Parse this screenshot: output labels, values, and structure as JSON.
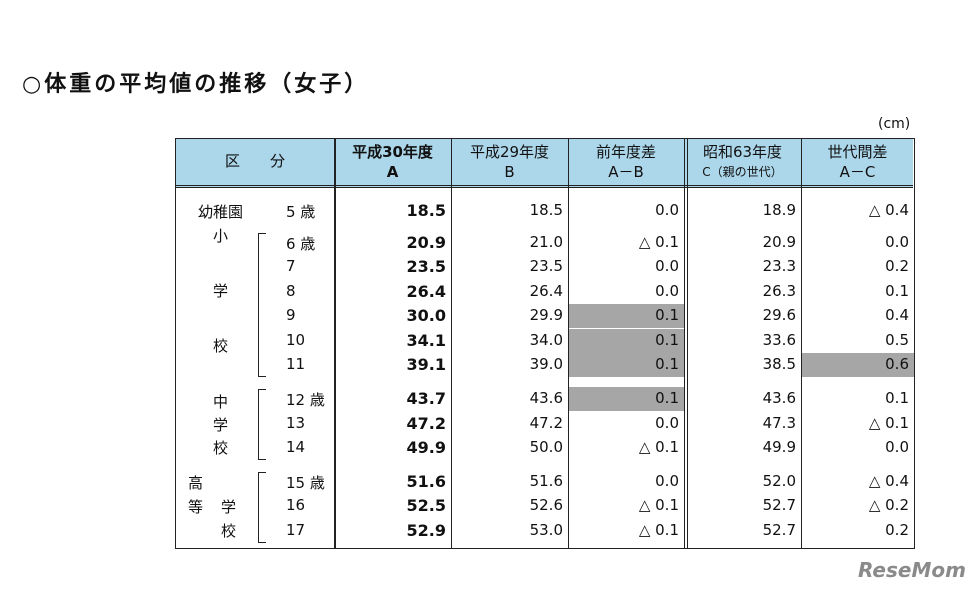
{
  "title": "○体重の平均値の推移（女子）",
  "unit": "(cm)",
  "table": {
    "header": [
      {
        "top": "区　　分"
      },
      {
        "top": "平成30年度",
        "bottom": "A"
      },
      {
        "top": "平成29年度",
        "bottom": "B"
      },
      {
        "top": "前年度差",
        "bottom": "A－B"
      },
      {
        "top": "昭和63年度",
        "bottom": "C（親の世代）"
      },
      {
        "top": "世代間差",
        "bottom": "A－C"
      }
    ],
    "groups": [
      {
        "chars": [
          "幼稚園"
        ],
        "rows": [
          0,
          0
        ]
      },
      {
        "chars": [
          "小",
          "学",
          "校"
        ],
        "rows": [
          1,
          6
        ]
      },
      {
        "chars": [
          "中",
          "学",
          "校"
        ],
        "rows": [
          7,
          9
        ]
      },
      {
        "chars": [
          "高",
          "等",
          "学",
          "校"
        ],
        "rows": [
          10,
          12
        ]
      }
    ],
    "rows": [
      {
        "age": "5 歳",
        "values": [
          "18.5",
          "18.5",
          "0.0",
          "18.9",
          "△ 0.4"
        ],
        "highlight": []
      },
      {
        "age": "6 歳",
        "values": [
          "20.9",
          "21.0",
          "△ 0.1",
          "20.9",
          "0.0"
        ],
        "highlight": []
      },
      {
        "age": "7",
        "values": [
          "23.5",
          "23.5",
          "0.0",
          "23.3",
          "0.2"
        ],
        "highlight": []
      },
      {
        "age": "8",
        "values": [
          "26.4",
          "26.4",
          "0.0",
          "26.3",
          "0.1"
        ],
        "highlight": []
      },
      {
        "age": "9",
        "values": [
          "30.0",
          "29.9",
          "0.1",
          "29.6",
          "0.4"
        ],
        "highlight": [
          2
        ]
      },
      {
        "age": "10",
        "values": [
          "34.1",
          "34.0",
          "0.1",
          "33.6",
          "0.5"
        ],
        "highlight": [
          2
        ]
      },
      {
        "age": "11",
        "values": [
          "39.1",
          "39.0",
          "0.1",
          "38.5",
          "0.6"
        ],
        "highlight": [
          2,
          4
        ]
      },
      {
        "age": "12 歳",
        "values": [
          "43.7",
          "43.6",
          "0.1",
          "43.6",
          "0.1"
        ],
        "highlight": [
          2
        ]
      },
      {
        "age": "13",
        "values": [
          "47.2",
          "47.2",
          "0.0",
          "47.3",
          "△ 0.1"
        ],
        "highlight": []
      },
      {
        "age": "14",
        "values": [
          "49.9",
          "50.0",
          "△ 0.1",
          "49.9",
          "0.0"
        ],
        "highlight": []
      },
      {
        "age": "15 歳",
        "values": [
          "51.6",
          "51.6",
          "0.0",
          "52.0",
          "△ 0.4"
        ],
        "highlight": []
      },
      {
        "age": "16",
        "values": [
          "52.5",
          "52.6",
          "△ 0.1",
          "52.7",
          "△ 0.2"
        ],
        "highlight": []
      },
      {
        "age": "17",
        "values": [
          "52.9",
          "53.0",
          "△ 0.1",
          "52.7",
          "0.2"
        ],
        "highlight": []
      }
    ]
  },
  "watermark": "ReseMom"
}
